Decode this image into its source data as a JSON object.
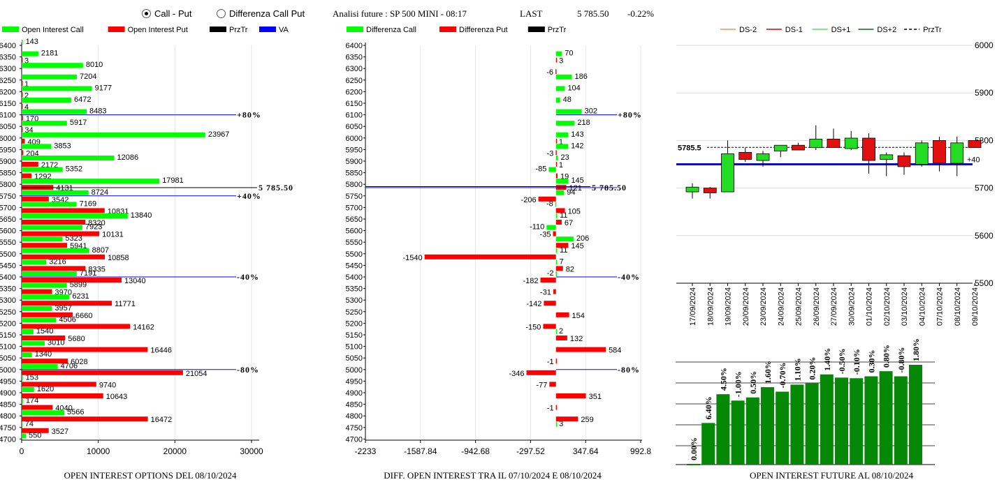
{
  "header": {
    "radio_call_put": "Call - Put",
    "radio_diff": "Differenza Call Put",
    "analysis": "Analisi future : SP 500 MINI - 08:17",
    "last_label": "LAST",
    "last_value": "5 785.50",
    "change": "-0.22%"
  },
  "colors": {
    "green": "#00ff00",
    "red": "#ff0000",
    "dark_green": "#008000",
    "blue": "#0000ff"
  },
  "chart_data": [
    {
      "id": "oi",
      "type": "bar",
      "title": "OPEN INTEREST OPTIONS DEL 08/10/2024",
      "legend": [
        "Open Interest Call",
        "Open Interest Put",
        "PrzTr",
        "VA"
      ],
      "categories": [
        "6400",
        "6350",
        "6300",
        "6250",
        "6200",
        "6150",
        "6100",
        "6050",
        "6000",
        "5950",
        "5900",
        "5850",
        "5800",
        "5750",
        "5700",
        "5650",
        "5600",
        "5550",
        "5500",
        "5450",
        "5400",
        "5350",
        "5300",
        "5250",
        "5200",
        "5150",
        "5100",
        "5050",
        "5000",
        "4950",
        "4900",
        "4850",
        "4800",
        "4750",
        "4700"
      ],
      "series": [
        {
          "name": "Open Interest Call",
          "values": [
            143,
            2181,
            8010,
            7204,
            9177,
            6472,
            8483,
            5917,
            23967,
            3853,
            12086,
            5352,
            17981,
            8724,
            7169,
            13840,
            7923,
            5323,
            8807,
            3216,
            7191,
            5899,
            6231,
            3957,
            4506,
            1540,
            3010,
            1340,
            4706,
            153,
            1620,
            174,
            5566,
            74,
            550
          ]
        },
        {
          "name": "Open Interest Put",
          "values": [
            null,
            3,
            null,
            1,
            2,
            4,
            170,
            34,
            409,
            204,
            2172,
            1292,
            4131,
            3542,
            10831,
            8320,
            10131,
            5941,
            10858,
            8335,
            13040,
            3970,
            11771,
            6660,
            14162,
            5680,
            16446,
            6028,
            21054,
            9740,
            10643,
            4040,
            16472,
            3527,
            null
          ]
        }
      ],
      "xticks": [
        "0",
        "10000",
        "20000",
        "30000"
      ],
      "xlim": [
        0,
        30000
      ],
      "lines": [
        {
          "level": "6100",
          "label": "+80%"
        },
        {
          "level": "5750",
          "label": "+40%"
        },
        {
          "level": "5400",
          "label": "-40%"
        },
        {
          "level": "5000",
          "label": "-80%"
        }
      ],
      "price_label": "5 785.50"
    },
    {
      "id": "diff",
      "type": "bar",
      "title": "DIFF. OPEN INTEREST TRA IL 07/10/2024 E 08/10/2024",
      "legend": [
        "Differenza Call",
        "Differenza Put",
        "PrzTr"
      ],
      "categories": [
        "6400",
        "6350",
        "6300",
        "6250",
        "6200",
        "6150",
        "6100",
        "6050",
        "6000",
        "5950",
        "5900",
        "5850",
        "5800",
        "5750",
        "5700",
        "5650",
        "5600",
        "5550",
        "5500",
        "5450",
        "5400",
        "5350",
        "5300",
        "5250",
        "5200",
        "5150",
        "5100",
        "5050",
        "5000",
        "4950",
        "4900",
        "4850",
        "4800",
        "4750",
        "4700"
      ],
      "series": [
        {
          "name": "Differenza Call",
          "values": [
            null,
            70,
            null,
            186,
            104,
            48,
            302,
            218,
            143,
            142,
            23,
            -85,
            145,
            94,
            -8,
            11,
            -110,
            206,
            11,
            7,
            -2,
            null,
            null,
            null,
            null,
            2,
            null,
            null,
            null,
            null,
            null,
            null,
            null,
            3,
            null
          ]
        },
        {
          "name": "Differenza Put",
          "values": [
            null,
            3,
            -6,
            null,
            null,
            null,
            null,
            null,
            1,
            -3,
            1,
            19,
            121,
            -206,
            105,
            67,
            -35,
            145,
            -1540,
            82,
            -182,
            -31,
            -142,
            154,
            -150,
            132,
            584,
            -1,
            -346,
            -77,
            351,
            -1,
            259,
            null,
            null
          ]
        }
      ],
      "xticks": [
        "-2233",
        "-1587.84",
        "-942.68",
        "-297.52",
        "347.64",
        "992.8"
      ],
      "xlim": [
        -2233,
        992.8
      ],
      "lines": [
        {
          "level": "6100",
          "label": "+80%"
        },
        {
          "level": "5400",
          "label": "-40%"
        },
        {
          "level": "5000",
          "label": "-80%"
        }
      ],
      "price_label": "5 785.50"
    },
    {
      "id": "candles",
      "type": "candlestick",
      "legend": [
        "DS-2",
        "DS-1",
        "DS+1",
        "DS+2",
        "PrzTr"
      ],
      "dates": [
        "17/09/2024",
        "18/09/2024",
        "19/09/2024",
        "20/09/2024",
        "23/09/2024",
        "24/09/2024",
        "25/09/2024",
        "26/09/2024",
        "27/09/2024",
        "30/09/2024",
        "01/10/2024",
        "02/10/2024",
        "03/10/2024",
        "04/10/2024",
        "07/10/2024",
        "08/10/2024",
        "09/10/2024"
      ],
      "ohlc": [
        [
          5692,
          5710,
          5678,
          5702
        ],
        [
          5700,
          5702,
          5678,
          5690
        ],
        [
          5692,
          5800,
          5692,
          5772
        ],
        [
          5775,
          5785,
          5755,
          5760
        ],
        [
          5758,
          5778,
          5745,
          5772
        ],
        [
          5778,
          5790,
          5765,
          5790
        ],
        [
          5790,
          5795,
          5780,
          5780
        ],
        [
          5785,
          5832,
          5780,
          5803
        ],
        [
          5803,
          5825,
          5785,
          5785
        ],
        [
          5783,
          5820,
          5780,
          5805
        ],
        [
          5805,
          5815,
          5730,
          5758
        ],
        [
          5760,
          5775,
          5725,
          5770
        ],
        [
          5768,
          5775,
          5728,
          5745
        ],
        [
          5750,
          5800,
          5745,
          5795
        ],
        [
          5800,
          5808,
          5735,
          5753
        ],
        [
          5752,
          5808,
          5725,
          5795
        ],
        [
          5800,
          5800,
          5785,
          5785
        ]
      ],
      "yticks": [
        "6000",
        "5900",
        "5800",
        "5700",
        "5600",
        "5500"
      ],
      "ylim": [
        5500,
        6000
      ],
      "prz_value": 5785.5,
      "prz_label": "5785.5",
      "va_value": 5750,
      "va_label": "+40"
    },
    {
      "id": "oi_future",
      "type": "bar",
      "title": "OPEN INTEREST FUTURE AL 08/10/2024",
      "labels": [
        "0.00%",
        "6.40%",
        "4.50%",
        "-1.00%",
        "0.50%",
        "1.60%",
        "-0.70%",
        "1.10%",
        "0.20%",
        "1.40%",
        "-0.50%",
        "-0.10%",
        "0.30%",
        "0.80%",
        "-0.80%",
        "1.80%"
      ],
      "values": [
        0,
        6.4,
        10.9,
        9.9,
        10.4,
        12.0,
        11.3,
        12.4,
        12.6,
        14.0,
        13.5,
        13.4,
        13.7,
        14.5,
        13.7,
        15.5
      ]
    }
  ]
}
